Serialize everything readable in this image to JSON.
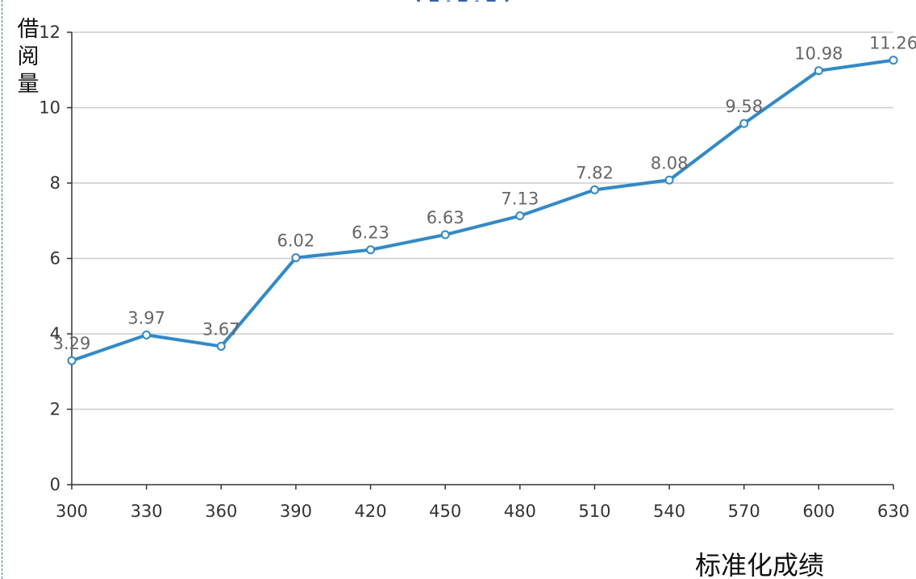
{
  "chart_data": {
    "type": "line",
    "title": "",
    "xlabel": "标准化成绩",
    "ylabel": "借阅量",
    "x": [
      300,
      330,
      360,
      390,
      420,
      450,
      480,
      510,
      540,
      570,
      600,
      630
    ],
    "x_tick_labels": [
      "300",
      "330",
      "360",
      "390",
      "420",
      "450",
      "480",
      "510",
      "540",
      "570",
      "600",
      "630"
    ],
    "y_tick_values": [
      0,
      2,
      4,
      6,
      8,
      10,
      12
    ],
    "y_tick_labels": [
      "0",
      "2",
      "4",
      "6",
      "8",
      "10",
      "12"
    ],
    "ylim": [
      0,
      12
    ],
    "xlim": [
      300,
      630
    ],
    "grid": "horizontal",
    "series": [
      {
        "values": [
          3.29,
          3.97,
          3.67,
          6.02,
          6.23,
          6.63,
          7.13,
          7.82,
          8.08,
          9.58,
          10.98,
          11.26
        ],
        "data_labels": [
          "3.29",
          "3.97",
          "3.67",
          "6.02",
          "6.23",
          "6.63",
          "7.13",
          "7.82",
          "8.08",
          "9.58",
          "10.98",
          "11.26"
        ],
        "color": "#2a8bd0"
      }
    ]
  },
  "colors": {
    "line": "#2a8bd0",
    "marker_fill": "#ffffff",
    "gridline": "#cccccc",
    "axis": "#333333",
    "tick_text": "#333333",
    "data_label": "#666666",
    "border_dashed": "#3d6fb5"
  }
}
